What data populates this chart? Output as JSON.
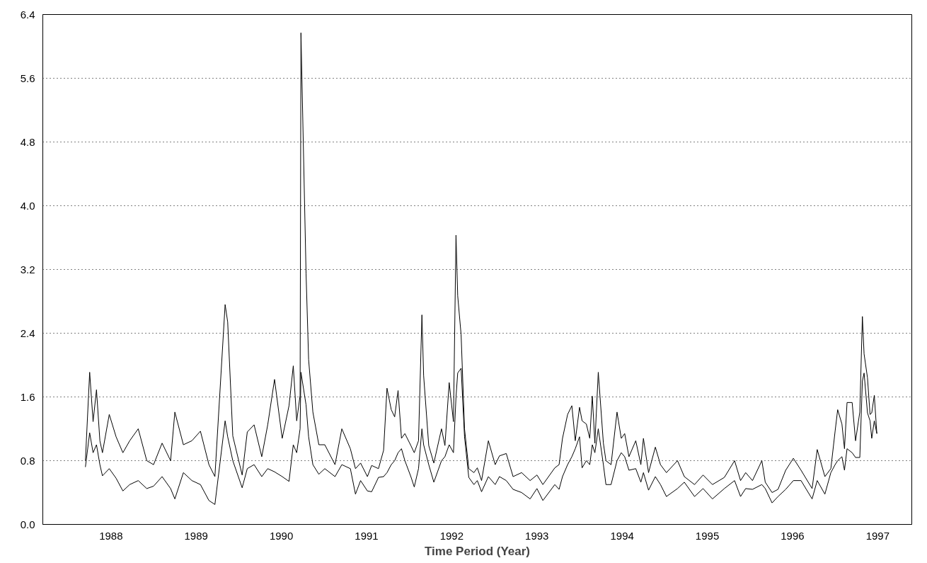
{
  "chart_data": {
    "type": "line",
    "xlabel": "Time Period (Year)",
    "x": [
      1988.2,
      1988.25,
      1988.29,
      1988.33,
      1988.37,
      1988.4,
      1988.48,
      1988.56,
      1988.64,
      1988.72,
      1988.82,
      1988.92,
      1989.0,
      1989.1,
      1989.2,
      1989.25,
      1989.35,
      1989.45,
      1989.55,
      1989.65,
      1989.72,
      1989.84,
      1989.87,
      1989.93,
      1990.04,
      1990.1,
      1990.18,
      1990.27,
      1990.34,
      1990.42,
      1990.51,
      1990.59,
      1990.64,
      1990.68,
      1990.72,
      1990.73,
      1990.79,
      1990.82,
      1990.87,
      1990.94,
      1991.01,
      1991.13,
      1991.21,
      1991.31,
      1991.37,
      1991.43,
      1991.51,
      1991.56,
      1991.64,
      1991.7,
      1991.74,
      1991.79,
      1991.83,
      1991.87,
      1991.91,
      1991.95,
      1992.02,
      1992.06,
      1992.11,
      1992.15,
      1992.17,
      1992.23,
      1992.29,
      1992.38,
      1992.42,
      1992.47,
      1992.52,
      1992.55,
      1992.57,
      1992.61,
      1992.65,
      1992.7,
      1992.76,
      1992.8,
      1992.85,
      1992.93,
      1993.01,
      1993.06,
      1993.14,
      1993.22,
      1993.32,
      1993.42,
      1993.5,
      1993.57,
      1993.71,
      1993.76,
      1993.8,
      1993.86,
      1993.91,
      1993.95,
      1994.0,
      1994.03,
      1994.08,
      1994.12,
      1994.15,
      1994.18,
      1994.22,
      1994.28,
      1994.31,
      1994.37,
      1994.44,
      1994.49,
      1994.53,
      1994.58,
      1994.66,
      1994.72,
      1994.75,
      1994.81,
      1994.89,
      1994.95,
      1995.02,
      1995.15,
      1995.23,
      1995.35,
      1995.45,
      1995.56,
      1995.7,
      1995.82,
      1995.89,
      1995.95,
      1996.03,
      1996.14,
      1996.18,
      1996.26,
      1996.33,
      1996.42,
      1996.51,
      1996.6,
      1996.73,
      1996.79,
      1996.88,
      1996.95,
      1997.0,
      1997.03,
      1997.08,
      1997.11,
      1997.14,
      1997.2,
      1997.24,
      1997.29,
      1997.32,
      1997.34,
      1997.38,
      1997.41,
      1997.43,
      1997.46,
      1997.49
    ],
    "series": [
      {
        "color": "#000000",
        "values": [
          0.8,
          1.91,
          1.29,
          1.69,
          1.05,
          0.9,
          1.38,
          1.1,
          0.9,
          1.05,
          1.2,
          0.8,
          0.75,
          1.02,
          0.8,
          1.41,
          1.0,
          1.05,
          1.17,
          0.75,
          0.6,
          2.76,
          2.54,
          1.11,
          0.62,
          1.16,
          1.25,
          0.85,
          1.25,
          1.82,
          1.08,
          1.49,
          1.99,
          1.3,
          1.62,
          6.17,
          3.15,
          2.07,
          1.41,
          1.0,
          1.0,
          0.75,
          1.2,
          0.95,
          0.7,
          0.77,
          0.6,
          0.74,
          0.7,
          0.93,
          1.71,
          1.44,
          1.35,
          1.68,
          1.08,
          1.14,
          0.99,
          0.9,
          1.05,
          2.63,
          1.87,
          0.99,
          0.77,
          1.2,
          0.99,
          1.78,
          1.29,
          3.63,
          2.87,
          2.38,
          1.2,
          0.7,
          0.65,
          0.71,
          0.55,
          1.05,
          0.75,
          0.86,
          0.89,
          0.6,
          0.65,
          0.55,
          0.62,
          0.5,
          0.71,
          0.75,
          1.08,
          1.38,
          1.49,
          1.05,
          1.47,
          1.3,
          1.26,
          1.08,
          1.61,
          1.02,
          1.91,
          1.02,
          0.8,
          0.75,
          1.41,
          1.08,
          1.14,
          0.85,
          1.05,
          0.75,
          1.08,
          0.65,
          0.97,
          0.75,
          0.65,
          0.8,
          0.6,
          0.5,
          0.62,
          0.5,
          0.59,
          0.8,
          0.55,
          0.65,
          0.55,
          0.8,
          0.53,
          0.4,
          0.44,
          0.68,
          0.83,
          0.68,
          0.45,
          0.94,
          0.6,
          0.7,
          1.17,
          1.44,
          1.26,
          0.95,
          1.53,
          1.53,
          1.05,
          1.41,
          2.61,
          2.14,
          1.84,
          1.38,
          1.4,
          1.62,
          1.14
        ]
      },
      {
        "color": "#000000",
        "values": [
          0.72,
          1.15,
          0.9,
          1.0,
          0.75,
          0.61,
          0.7,
          0.58,
          0.42,
          0.5,
          0.55,
          0.45,
          0.48,
          0.6,
          0.45,
          0.32,
          0.65,
          0.55,
          0.5,
          0.3,
          0.25,
          1.3,
          1.1,
          0.8,
          0.46,
          0.7,
          0.75,
          0.6,
          0.7,
          0.66,
          0.6,
          0.54,
          1.0,
          0.9,
          1.2,
          1.91,
          1.5,
          1.1,
          0.75,
          0.63,
          0.7,
          0.6,
          0.75,
          0.7,
          0.38,
          0.55,
          0.42,
          0.41,
          0.59,
          0.6,
          0.65,
          0.75,
          0.8,
          0.9,
          0.95,
          0.8,
          0.6,
          0.47,
          0.7,
          1.2,
          1.0,
          0.75,
          0.53,
          0.8,
          0.85,
          1.0,
          0.9,
          1.6,
          1.9,
          1.96,
          1.1,
          0.59,
          0.5,
          0.55,
          0.41,
          0.6,
          0.5,
          0.6,
          0.55,
          0.44,
          0.4,
          0.32,
          0.45,
          0.3,
          0.5,
          0.44,
          0.6,
          0.75,
          0.85,
          0.95,
          1.1,
          0.71,
          0.8,
          0.75,
          1.0,
          0.9,
          1.2,
          0.75,
          0.5,
          0.5,
          0.8,
          0.9,
          0.85,
          0.68,
          0.7,
          0.53,
          0.65,
          0.43,
          0.6,
          0.5,
          0.35,
          0.45,
          0.53,
          0.35,
          0.45,
          0.32,
          0.45,
          0.55,
          0.35,
          0.45,
          0.44,
          0.5,
          0.45,
          0.27,
          0.35,
          0.44,
          0.55,
          0.55,
          0.32,
          0.55,
          0.38,
          0.65,
          0.75,
          0.8,
          0.85,
          0.68,
          0.95,
          0.9,
          0.84,
          0.84,
          1.8,
          1.9,
          1.4,
          1.3,
          1.08,
          1.3,
          1.14
        ]
      }
    ],
    "xlim": [
      1987.7,
      1997.9
    ],
    "xticks": [
      {
        "value": 1988.5,
        "label": "1988"
      },
      {
        "value": 1989.5,
        "label": "1989"
      },
      {
        "value": 1990.5,
        "label": "1990"
      },
      {
        "value": 1991.5,
        "label": "1991"
      },
      {
        "value": 1992.5,
        "label": "1992"
      },
      {
        "value": 1993.5,
        "label": "1993"
      },
      {
        "value": 1994.5,
        "label": "1994"
      },
      {
        "value": 1995.5,
        "label": "1995"
      },
      {
        "value": 1996.5,
        "label": "1996"
      },
      {
        "value": 1997.5,
        "label": "1997"
      }
    ],
    "ylim": [
      0,
      6.4
    ],
    "yticks": [
      {
        "value": 0,
        "label": "0.0"
      },
      0.8,
      1.6,
      2.4,
      3.2,
      {
        "value": 4.0,
        "label": "4.0"
      },
      4.8,
      5.6,
      6.4
    ],
    "grid": "y",
    "line_style": "solid",
    "marker": "none"
  }
}
